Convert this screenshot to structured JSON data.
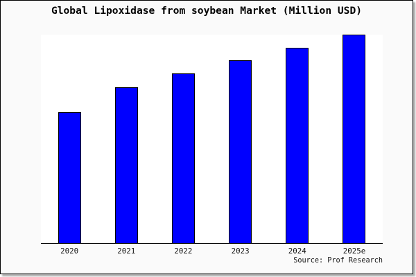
{
  "figure": {
    "background_color": "#fafafa",
    "plot_background_color": "#ffffff",
    "border_color": "#000000"
  },
  "chart_data": {
    "type": "bar",
    "title": "Global Lipoxidase from soybean Market (Million USD)",
    "categories": [
      "2020",
      "2021",
      "2022",
      "2023",
      "2024",
      "2025e"
    ],
    "values": [
      62.8,
      74.8,
      81.4,
      87.7,
      93.7,
      100
    ],
    "value_units": "relative bar height, % of 2025e bar (no y-axis or value labels shown)",
    "xlabel": "",
    "ylabel": "",
    "bar_color": "#0000ff",
    "bar_border_color": "#000000",
    "legend": null,
    "gridlines": false,
    "y_axis_shown": false,
    "axis_line": "bottom only",
    "source": "Source: Prof Research"
  }
}
